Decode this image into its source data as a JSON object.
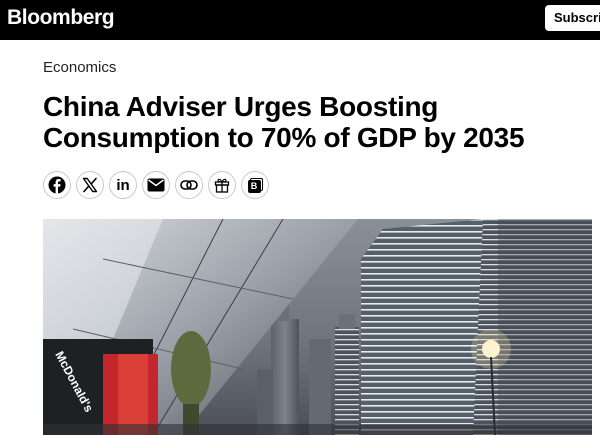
{
  "header": {
    "logo": "Bloomberg",
    "subscribe_label": "Subscri"
  },
  "article": {
    "section": "Economics",
    "headline_line1": "China Adviser Urges Boosting",
    "headline_line2": "Consumption to 70% of GDP by 2035",
    "hero_sign_text": "McDonald's"
  },
  "share": {
    "icons": [
      "facebook-icon",
      "x-icon",
      "linkedin-icon",
      "email-icon",
      "copy-link-icon",
      "gift-icon",
      "bloomberg-terminal-icon"
    ],
    "linkedin_text": "in",
    "terminal_text": "B"
  },
  "colors": {
    "topbar": "#000000",
    "text": "#000000",
    "button_border": "#c9c9c9"
  }
}
